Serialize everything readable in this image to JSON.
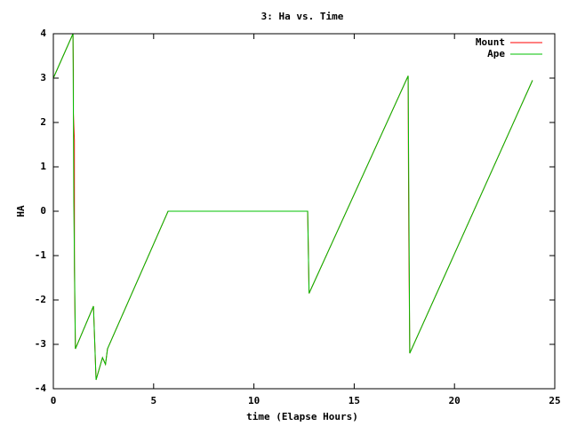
{
  "chart_data": {
    "type": "line",
    "title": "3: Ha vs. Time",
    "xlabel": "time (Elapse Hours)",
    "ylabel": "HA",
    "xlim": [
      0,
      25
    ],
    "xticks": [
      0,
      5,
      10,
      15,
      20,
      25
    ],
    "ylim": [
      -4,
      4
    ],
    "yticks": [
      -4,
      -3,
      -2,
      -1,
      0,
      1,
      2,
      3,
      4
    ],
    "legend": "top-right",
    "series": [
      {
        "name": "Mount",
        "color": "#ff0000",
        "x": [
          0,
          0.98,
          1.0,
          1.0,
          1.05,
          1.05,
          1.1,
          2.0,
          2.13,
          2.45,
          2.6,
          2.7,
          5.72,
          12.68,
          12.75,
          17.69,
          17.7,
          17.72,
          17.77,
          23.89
        ],
        "values": [
          3.0,
          4.0,
          3.2,
          2.2,
          1.6,
          -1.3,
          -3.1,
          -2.14,
          -3.8,
          -3.3,
          -3.45,
          -3.1,
          0,
          0,
          -1.85,
          3.05,
          1.5,
          -0.4,
          -3.2,
          2.95
        ]
      },
      {
        "name": "Ape",
        "color": "#00c000",
        "x": [
          0,
          0.98,
          1.02,
          1.1,
          2.0,
          2.13,
          2.45,
          2.6,
          2.7,
          5.72,
          12.68,
          12.75,
          17.69,
          17.77,
          23.89
        ],
        "values": [
          3.0,
          4.0,
          0.2,
          -3.1,
          -2.14,
          -3.8,
          -3.3,
          -3.45,
          -3.1,
          0,
          0,
          -1.85,
          3.05,
          -3.2,
          2.95
        ]
      }
    ]
  }
}
